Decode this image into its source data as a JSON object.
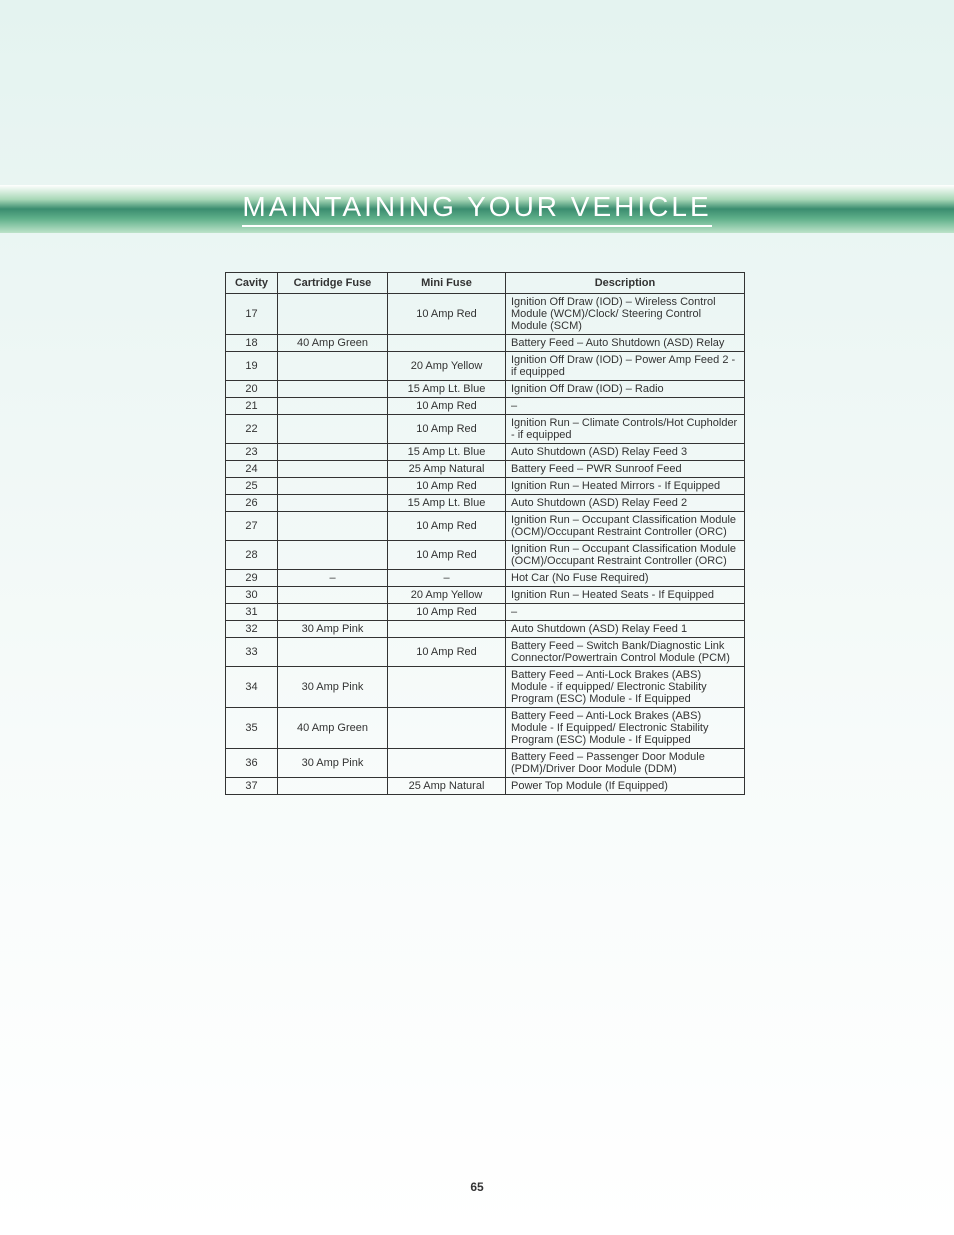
{
  "header": {
    "title": "MAINTAINING YOUR VEHICLE"
  },
  "page_number": "65",
  "fuse_table": {
    "columns": [
      "Cavity",
      "Cartridge Fuse",
      "Mini Fuse",
      "Description"
    ],
    "rows": [
      {
        "cavity": "17",
        "cartridge": "",
        "mini": "10 Amp Red",
        "desc": "Ignition Off Draw (IOD) – Wireless Control Module (WCM)/Clock/ Steering Control Module (SCM)"
      },
      {
        "cavity": "18",
        "cartridge": "40 Amp Green",
        "mini": "",
        "desc": "Battery Feed – Auto Shutdown (ASD) Relay"
      },
      {
        "cavity": "19",
        "cartridge": "",
        "mini": "20 Amp Yellow",
        "desc": "Ignition Off Draw (IOD) – Power Amp Feed 2 - if equipped"
      },
      {
        "cavity": "20",
        "cartridge": "",
        "mini": "15 Amp Lt. Blue",
        "desc": "Ignition Off Draw (IOD) – Radio"
      },
      {
        "cavity": "21",
        "cartridge": "",
        "mini": "10 Amp Red",
        "desc": "–"
      },
      {
        "cavity": "22",
        "cartridge": "",
        "mini": "10 Amp Red",
        "desc": "Ignition Run – Climate Controls/Hot Cupholder - if equipped"
      },
      {
        "cavity": "23",
        "cartridge": "",
        "mini": "15 Amp Lt. Blue",
        "desc": "Auto Shutdown (ASD) Relay Feed 3"
      },
      {
        "cavity": "24",
        "cartridge": "",
        "mini": "25 Amp Natural",
        "desc": "Battery Feed – PWR Sunroof Feed"
      },
      {
        "cavity": "25",
        "cartridge": "",
        "mini": "10 Amp Red",
        "desc": "Ignition Run – Heated Mirrors - If Equipped"
      },
      {
        "cavity": "26",
        "cartridge": "",
        "mini": "15 Amp Lt. Blue",
        "desc": "Auto Shutdown (ASD) Relay Feed 2"
      },
      {
        "cavity": "27",
        "cartridge": "",
        "mini": "10 Amp Red",
        "desc": "Ignition Run – Occupant Classification Module (OCM)/Occupant Restraint Controller (ORC)"
      },
      {
        "cavity": "28",
        "cartridge": "",
        "mini": "10 Amp Red",
        "desc": "Ignition Run – Occupant Classification Module (OCM)/Occupant Restraint Controller (ORC)"
      },
      {
        "cavity": "29",
        "cartridge": "–",
        "mini": "–",
        "desc": "Hot Car (No Fuse Required)"
      },
      {
        "cavity": "30",
        "cartridge": "",
        "mini": "20 Amp Yellow",
        "desc": "Ignition Run – Heated Seats - If Equipped"
      },
      {
        "cavity": "31",
        "cartridge": "",
        "mini": "10 Amp Red",
        "desc": "–"
      },
      {
        "cavity": "32",
        "cartridge": "30 Amp Pink",
        "mini": "",
        "desc": "Auto Shutdown (ASD) Relay Feed 1"
      },
      {
        "cavity": "33",
        "cartridge": "",
        "mini": "10 Amp Red",
        "desc": "Battery Feed – Switch Bank/Diagnostic Link Connector/Powertrain Control Module (PCM)"
      },
      {
        "cavity": "34",
        "cartridge": "30 Amp Pink",
        "mini": "",
        "desc": "Battery Feed – Anti-Lock Brakes (ABS) Module - if equipped/ Electronic Stability Program (ESC) Module - If Equipped"
      },
      {
        "cavity": "35",
        "cartridge": "40 Amp Green",
        "mini": "",
        "desc": "Battery Feed – Anti-Lock Brakes (ABS) Module - If Equipped/ Electronic Stability Program (ESC) Module - If Equipped"
      },
      {
        "cavity": "36",
        "cartridge": "30 Amp Pink",
        "mini": "",
        "desc": "Battery Feed – Passenger Door Module (PDM)/Driver Door Module (DDM)"
      },
      {
        "cavity": "37",
        "cartridge": "",
        "mini": "25 Amp Natural",
        "desc": "Power Top Module (If Equipped)"
      }
    ]
  }
}
